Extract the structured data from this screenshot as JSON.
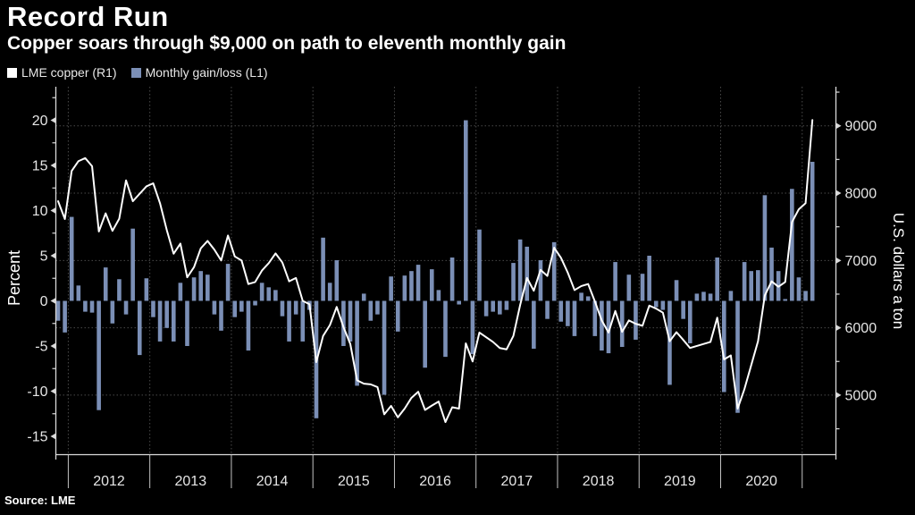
{
  "header": {
    "title": "Record Run",
    "subtitle": "Copper soars through $9,000 on path to eleventh monthly gain"
  },
  "legend": [
    {
      "label": "LME copper (R1)",
      "swatch_color": "#ffffff"
    },
    {
      "label": "Monthly gain/loss (L1)",
      "swatch_color": "#7b8fb6"
    }
  ],
  "source": "Source: LME",
  "colors": {
    "background": "#000000",
    "bar": "#7b8fb6",
    "line": "#ffffff",
    "grid": "#4a4a4a",
    "axis": "#d9d9d9",
    "tick_label": "#e6e6e6",
    "year_divider": "#c4c4c4",
    "text": "#ffffff"
  },
  "chart_data": {
    "type": "combo",
    "title": "Record Run",
    "subtitle": "Copper soars through $9,000 on path to eleventh monthly gain",
    "legend_position": "top-left",
    "grid": {
      "horizontal_dotted_at_dollar_ticks": true,
      "vertical_dotted_at_year_starts": true
    },
    "months": [
      "2011-11",
      "2011-12",
      "2012-01",
      "2012-02",
      "2012-03",
      "2012-04",
      "2012-05",
      "2012-06",
      "2012-07",
      "2012-08",
      "2012-09",
      "2012-10",
      "2012-11",
      "2012-12",
      "2013-01",
      "2013-02",
      "2013-03",
      "2013-04",
      "2013-05",
      "2013-06",
      "2013-07",
      "2013-08",
      "2013-09",
      "2013-10",
      "2013-11",
      "2013-12",
      "2014-01",
      "2014-02",
      "2014-03",
      "2014-04",
      "2014-05",
      "2014-06",
      "2014-07",
      "2014-08",
      "2014-09",
      "2014-10",
      "2014-11",
      "2014-12",
      "2015-01",
      "2015-02",
      "2015-03",
      "2015-04",
      "2015-05",
      "2015-06",
      "2015-07",
      "2015-08",
      "2015-09",
      "2015-10",
      "2015-11",
      "2015-12",
      "2016-01",
      "2016-02",
      "2016-03",
      "2016-04",
      "2016-05",
      "2016-06",
      "2016-07",
      "2016-08",
      "2016-09",
      "2016-10",
      "2016-11",
      "2016-12",
      "2017-01",
      "2017-02",
      "2017-03",
      "2017-04",
      "2017-05",
      "2017-06",
      "2017-07",
      "2017-08",
      "2017-09",
      "2017-10",
      "2017-11",
      "2017-12",
      "2018-01",
      "2018-02",
      "2018-03",
      "2018-04",
      "2018-05",
      "2018-06",
      "2018-07",
      "2018-08",
      "2018-09",
      "2018-10",
      "2018-11",
      "2018-12",
      "2019-01",
      "2019-02",
      "2019-03",
      "2019-04",
      "2019-05",
      "2019-06",
      "2019-07",
      "2019-08",
      "2019-09",
      "2019-10",
      "2019-11",
      "2019-12",
      "2020-01",
      "2020-02",
      "2020-03",
      "2020-04",
      "2020-05",
      "2020-06",
      "2020-07",
      "2020-08",
      "2020-09",
      "2020-10",
      "2020-11",
      "2020-12",
      "2021-01",
      "2021-02"
    ],
    "series": [
      {
        "name": "Monthly gain/loss (L1)",
        "type": "bar",
        "axis": "left",
        "unit": "percent",
        "color": "#7b8fb6",
        "values": [
          -2.2,
          -3.5,
          9.3,
          1.7,
          -1.2,
          -1.3,
          -12.1,
          3.7,
          -2.5,
          2.4,
          -1.5,
          8.0,
          -6.0,
          2.5,
          -1.8,
          -4.5,
          -3.0,
          -4.5,
          2.0,
          -5.0,
          2.6,
          3.3,
          2.9,
          -1.5,
          -3.3,
          4.1,
          -1.8,
          -1.2,
          -5.5,
          -0.5,
          2.0,
          1.5,
          1.2,
          -1.7,
          -4.5,
          -1.5,
          -4.5,
          -1.0,
          -13.0,
          7.0,
          2.0,
          4.5,
          -5.0,
          -4.5,
          -9.4,
          0.8,
          -2.2,
          -1.5,
          -10.4,
          2.7,
          -3.4,
          2.8,
          3.3,
          4.0,
          -7.4,
          3.5,
          1.2,
          -6.2,
          4.8,
          -0.4,
          20.0,
          -5.9,
          7.9,
          -1.7,
          -1.2,
          -1.5,
          -1.0,
          4.2,
          6.8,
          6.0,
          -5.3,
          4.5,
          -2.0,
          6.5,
          -2.3,
          -2.8,
          -3.9,
          0.9,
          0.5,
          -3.9,
          -5.5,
          -5.8,
          4.3,
          -5.1,
          2.9,
          -4.3,
          3.0,
          5.0,
          -0.7,
          -1.0,
          -9.3,
          2.3,
          -2.0,
          -4.7,
          0.8,
          1.0,
          0.8,
          4.8,
          -10.1,
          1.1,
          -12.4,
          4.3,
          3.3,
          3.4,
          11.7,
          5.9,
          3.3,
          0.2,
          12.4,
          2.6,
          1.1,
          15.4
        ]
      },
      {
        "name": "LME copper (R1)",
        "type": "line",
        "axis": "right",
        "unit": "U.S. dollars a ton",
        "color": "#ffffff",
        "values": [
          7880,
          7615,
          8330,
          8475,
          8520,
          8400,
          7430,
          7700,
          7440,
          7620,
          8190,
          7880,
          7990,
          8100,
          8146,
          7850,
          7450,
          7100,
          7250,
          6750,
          6900,
          7180,
          7290,
          7160,
          7000,
          7370,
          7060,
          7000,
          6650,
          6680,
          6850,
          6960,
          7105,
          6970,
          6690,
          6740,
          6400,
          6350,
          5490,
          5880,
          6040,
          6310,
          6010,
          5760,
          5220,
          5170,
          5160,
          5120,
          4715,
          4840,
          4670,
          4800,
          4960,
          5050,
          4780,
          4845,
          4905,
          4600,
          4820,
          4800,
          5770,
          5500,
          5930,
          5860,
          5790,
          5700,
          5680,
          5880,
          6340,
          6740,
          6550,
          6860,
          6770,
          7190,
          7040,
          6820,
          6560,
          6620,
          6650,
          6390,
          6110,
          5930,
          6250,
          5940,
          6110,
          6060,
          6030,
          6330,
          6285,
          6225,
          5800,
          5935,
          5820,
          5700,
          5730,
          5760,
          5790,
          6150,
          5530,
          5590,
          4800,
          5090,
          5445,
          5800,
          6480,
          6690,
          6610,
          6680,
          7570,
          7760,
          7850,
          9085
        ]
      }
    ],
    "axes": {
      "left": {
        "label": "Percent",
        "ticks": [
          20,
          15,
          10,
          5,
          0,
          -5,
          -10,
          -15
        ],
        "minor_tick_step": 2.5,
        "range": [
          -17.2,
          23.7
        ]
      },
      "right": {
        "label": "U.S. dollars a ton",
        "ticks": [
          9000,
          8000,
          7000,
          6000,
          5000
        ],
        "minor_tick_step": 500,
        "range": [
          4100,
          9580
        ]
      }
    },
    "x_axis": {
      "year_labels": [
        "2012",
        "2013",
        "2014",
        "2015",
        "2016",
        "2017",
        "2018",
        "2019",
        "2020"
      ]
    }
  }
}
